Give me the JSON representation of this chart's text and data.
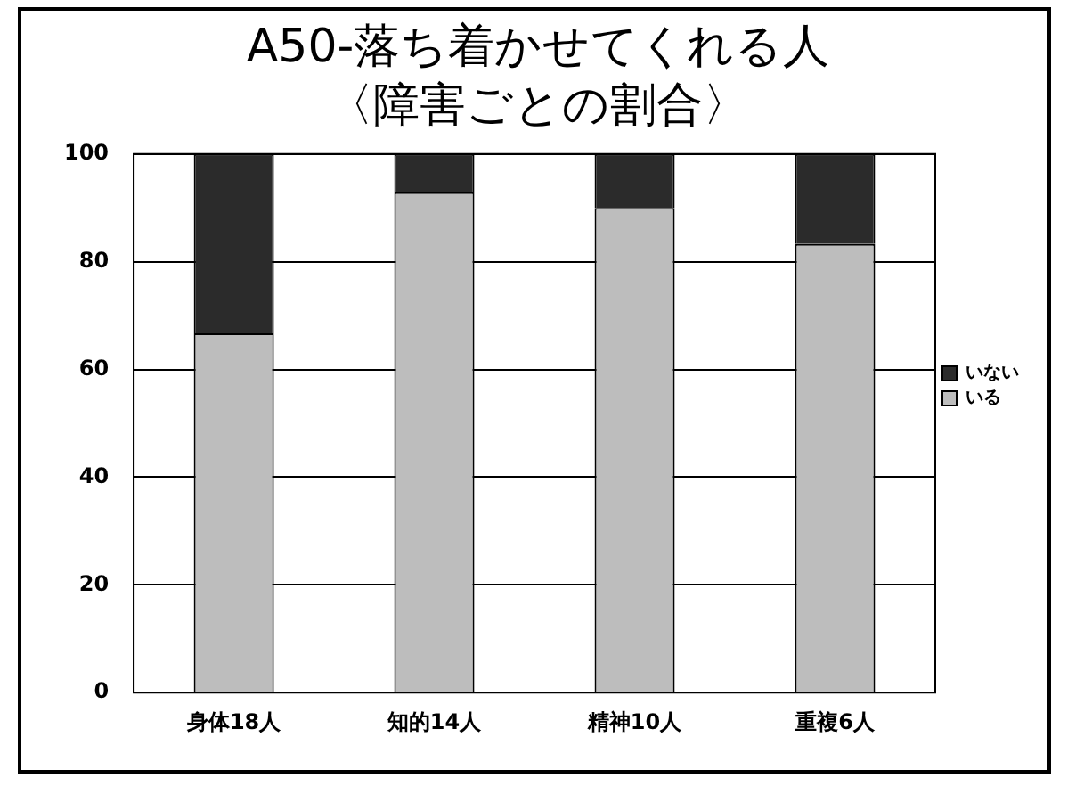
{
  "chart_data": {
    "type": "bar",
    "title": "A50-落ち着かせてくれる人",
    "subtitle": "〈障害ごとの割合〉",
    "categories": [
      "身体18人",
      "知的14人",
      "精神10人",
      "重複6人"
    ],
    "stacked": true,
    "series": [
      {
        "name": "いる",
        "color": "#bdbdbd",
        "values": [
          66.7,
          92.9,
          90,
          83.3
        ]
      },
      {
        "name": "いない",
        "color": "#2b2b2b",
        "values": [
          33.3,
          7.1,
          10,
          16.7
        ]
      }
    ],
    "ylim": [
      0,
      100
    ],
    "yticks": [
      0,
      20,
      40,
      60,
      80,
      100
    ],
    "grid": "y",
    "legend": "right"
  }
}
